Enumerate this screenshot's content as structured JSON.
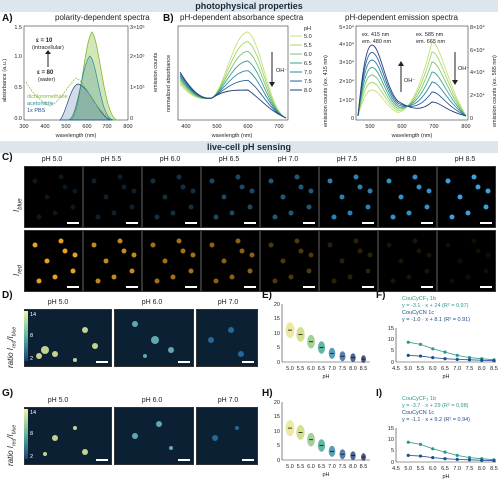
{
  "banners": {
    "photophysical": "photophysical properties",
    "livecell": "live-cell pH sensing"
  },
  "panel_letters": [
    "A)",
    "B)",
    "C)",
    "D)",
    "E)",
    "F)",
    "G)",
    "H)",
    "I)"
  ],
  "panelA": {
    "title": "polarity-dependent spectra",
    "xlabel": "wavelength (nm)",
    "ylabel_left": "absorbance (a.u.)",
    "ylabel_right": "emission counts",
    "xticks": [
      "300",
      "400",
      "500",
      "600",
      "700",
      "800"
    ],
    "yticks_left": [
      "0.0",
      "0.5",
      "1.0",
      "1.5"
    ],
    "yticks_right": [
      "0",
      "1×10⁵",
      "2×10⁵",
      "3×10⁵"
    ],
    "ann_eps10": "ε = 10",
    "ann_intra": "(intracellular)",
    "ann_eps80": "ε = 80",
    "ann_water": "(water)",
    "legend": [
      "dichloromethane",
      "acetonitrile",
      "1x PBS"
    ],
    "colors": {
      "dcm": "#7fb832",
      "acn": "#2a8a9a",
      "pbs": "#1f4e8c"
    }
  },
  "panelB": {
    "title_abs": "pH-dependent absorbance spectra",
    "title_em": "pH-dependent emission spectra",
    "xlabel": "wavelength (nm)",
    "ylabel_abs": "normalized absorbance",
    "ylabel_em_left": "emission counts (ex. 415 nm)",
    "ylabel_em_right": "emission counts (ex. 585 nm)",
    "xticks_abs": [
      "400",
      "500",
      "600",
      "700"
    ],
    "xticks_em": [
      "500",
      "600",
      "700",
      "800"
    ],
    "yticks_em_left": [
      "0",
      "1×10⁴",
      "2×10⁴",
      "3×10⁴",
      "4×10⁴",
      "5×10⁴"
    ],
    "yticks_em_right": [
      "0",
      "2×10⁴",
      "4×10⁴",
      "6×10⁴",
      "8×10⁴"
    ],
    "oh_label": "OH⁻",
    "ex415": "ex. 415 nm",
    "em480": "em. 480 nm",
    "ex585": "ex. 585 nm",
    "em665": "em. 665 nm",
    "ph_title": "pH",
    "ph_list": [
      "5.0",
      "5.5",
      "6.0",
      "6.5",
      "7.0",
      "7.5",
      "8.0"
    ],
    "ph_colors": [
      "#c8e07a",
      "#a6d56a",
      "#7cc46a",
      "#3aa58a",
      "#2e86a8",
      "#2b5f9e",
      "#23407a"
    ]
  },
  "panelC": {
    "ph_headers": [
      "pH 5.0",
      "pH 5.5",
      "pH 6.0",
      "pH 6.5",
      "pH 7.0",
      "pH 7.5",
      "pH 8.0",
      "pH 8.5"
    ],
    "row_blue": "I",
    "row_blue_sub": "blue",
    "row_red": "I",
    "row_red_sub": "red",
    "blue_intensity": [
      0.15,
      0.2,
      0.3,
      0.45,
      0.55,
      0.8,
      0.9,
      1.0
    ],
    "red_intensity": [
      1.0,
      0.85,
      0.7,
      0.6,
      0.35,
      0.2,
      0.12,
      0.08
    ]
  },
  "panelD": {
    "ph_headers": [
      "pH 5.0",
      "pH 6.0",
      "pH 7.0"
    ],
    "ylabel": "ratio I",
    "ylabel_sub": "red",
    "ylabel_sub2": "blue",
    "cbar_ticks": [
      "14",
      "12",
      "10",
      "8",
      "6",
      "4",
      "2"
    ]
  },
  "panelE": {
    "xlabel": "pH",
    "ylabel": "I",
    "yticks": [
      "0",
      "5",
      "10",
      "15",
      "20"
    ],
    "xticks": [
      "5.0",
      "5.5",
      "6.0",
      "6.5",
      "7.0",
      "7.5",
      "8.0",
      "8.5"
    ]
  },
  "panelF": {
    "xlabel": "pH",
    "ylabel": "I",
    "yticks": [
      "0",
      "5",
      "10",
      "15"
    ],
    "xticks": [
      "4.5",
      "5.0",
      "5.5",
      "6.0",
      "6.5",
      "7.0",
      "7.5",
      "8.0",
      "8.5"
    ],
    "series1_name": "CouCyCF₃ 1b",
    "series1_fit": "y = -3.1 · x + 24 (R² = 0.97)",
    "series2_name": "CouCyCN 1c",
    "series2_fit": "y = -1.0 · x + 8.1 (R² = 0.91)"
  },
  "panelG": {
    "ph_headers": [
      "pH 5.0",
      "pH 6.0",
      "pH 7.0"
    ],
    "ylabel": "ratio I",
    "cbar_ticks": [
      "14",
      "12",
      "10",
      "8",
      "6",
      "4",
      "2"
    ]
  },
  "panelH": {
    "xlabel": "pH",
    "yticks": [
      "0",
      "5",
      "10",
      "15",
      "20"
    ],
    "xticks": [
      "5.0",
      "5.5",
      "6.0",
      "6.5",
      "7.0",
      "7.5",
      "8.0",
      "8.5"
    ]
  },
  "panelI": {
    "xlabel": "pH",
    "yticks": [
      "0",
      "5",
      "10",
      "15"
    ],
    "xticks": [
      "4.5",
      "5.0",
      "5.5",
      "6.0",
      "6.5",
      "7.0",
      "7.5",
      "8.0",
      "8.5"
    ],
    "series1_name": "CouCyCF₃ 1b",
    "series1_fit": "y = -3.7 · x + 29 (R² = 0.98)",
    "series2_name": "CouCyCN 1c",
    "series2_fit": "y = -1.1 · x + 9.2 (R² = 0.94)"
  },
  "chart_data": [
    {
      "type": "line",
      "title": "pH-dependent absorbance spectra",
      "xlabel": "wavelength (nm)",
      "ylabel": "normalized absorbance",
      "x": [
        380,
        420,
        460,
        500,
        540,
        580,
        620,
        660,
        700
      ],
      "series": [
        {
          "name": "5.0",
          "values": [
            0.45,
            0.3,
            0.25,
            0.45,
            0.7,
            0.85,
            0.65,
            0.2,
            0.05
          ]
        },
        {
          "name": "6.0",
          "values": [
            0.5,
            0.33,
            0.24,
            0.35,
            0.55,
            0.67,
            0.52,
            0.17,
            0.04
          ]
        },
        {
          "name": "7.0",
          "values": [
            0.6,
            0.4,
            0.23,
            0.22,
            0.33,
            0.42,
            0.33,
            0.11,
            0.03
          ]
        },
        {
          "name": "8.0",
          "values": [
            0.7,
            0.45,
            0.22,
            0.15,
            0.22,
            0.28,
            0.22,
            0.08,
            0.02
          ]
        }
      ]
    },
    {
      "type": "scatter",
      "title": "",
      "xlabel": "pH",
      "ylabel": "I red / I blue",
      "x": [
        5.0,
        5.5,
        6.0,
        6.5,
        7.0,
        7.5,
        8.0,
        8.5
      ],
      "series": [
        {
          "name": "CouCyCF₃ 1b",
          "values": [
            9,
            8,
            6,
            4.5,
            3,
            2,
            1.5,
            1
          ]
        },
        {
          "name": "CouCyCN 1c",
          "values": [
            3,
            2.7,
            2,
            1.5,
            1.2,
            1,
            0.8,
            0.6
          ]
        }
      ]
    }
  ]
}
